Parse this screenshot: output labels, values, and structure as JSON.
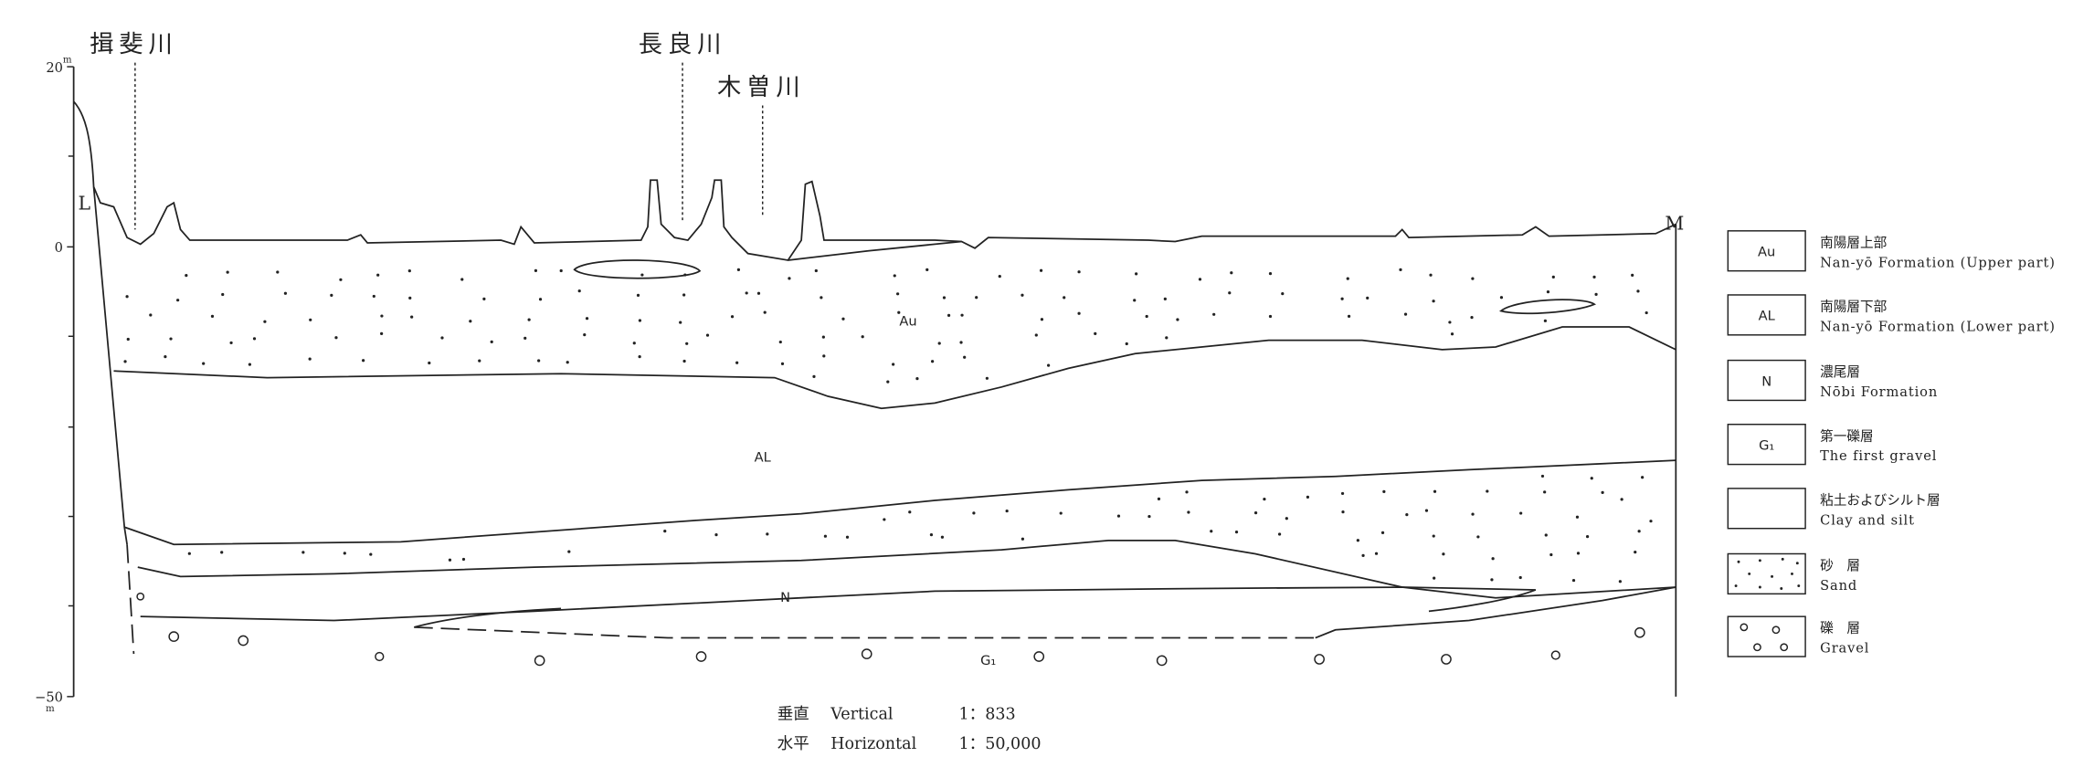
{
  "rivers": [
    "揖斐川",
    "長良川",
    "木曽川"
  ],
  "axis": {
    "ticks": [
      {
        "value": "20",
        "unit": "m"
      },
      {
        "value": "0"
      },
      {
        "value": "−50",
        "unit": "m"
      }
    ]
  },
  "section": {
    "left": "L",
    "right": "M",
    "layers": [
      "Au",
      "AL",
      "N",
      "G₁"
    ]
  },
  "legend": [
    {
      "code": "Au",
      "name_ja": "南陽層上部",
      "name_en": "Nan-yō Formation (Upper part)"
    },
    {
      "code": "AL",
      "name_ja": "南陽層下部",
      "name_en": "Nan-yō Formation (Lower part)"
    },
    {
      "code": "N",
      "name_ja": "濃尾層",
      "name_en": "Nōbi Formation"
    },
    {
      "code": "G₁",
      "name_ja": "第一礫層",
      "name_en": "The first gravel"
    },
    {
      "name_ja": "粘土およびシルト層",
      "name_en": "Clay and silt"
    },
    {
      "name_ja": "砂　層",
      "name_en": "Sand"
    },
    {
      "name_ja": "礫　層",
      "name_en": "Gravel"
    }
  ],
  "scale": [
    {
      "ja": "垂直",
      "en": "Vertical",
      "ratio": "1：833"
    },
    {
      "ja": "水平",
      "en": "Horizontal",
      "ratio": "1：50,000"
    }
  ]
}
